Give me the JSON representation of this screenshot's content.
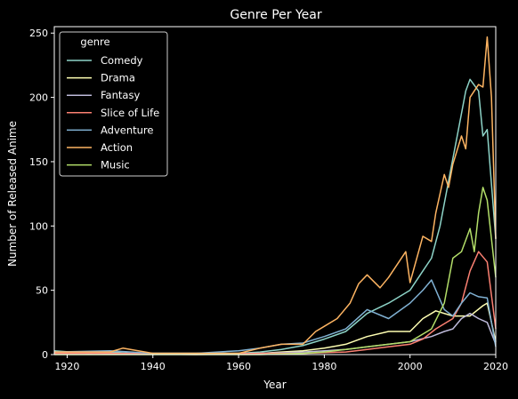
{
  "chart_data": {
    "type": "line",
    "title": "Genre Per Year",
    "xlabel": "Year",
    "ylabel": "Number of Released Anime",
    "xlim": [
      1917,
      2020
    ],
    "ylim": [
      0,
      255
    ],
    "xticks": [
      1920,
      1940,
      1960,
      1980,
      2000,
      2020
    ],
    "yticks": [
      0,
      50,
      100,
      150,
      200,
      250
    ],
    "grid": false,
    "legend": {
      "title": "genre",
      "placement": "top-left"
    },
    "series": [
      {
        "name": "Comedy",
        "color": "#8dd3c7",
        "points": [
          [
            1917,
            3
          ],
          [
            1925,
            1
          ],
          [
            1930,
            2
          ],
          [
            1935,
            1
          ],
          [
            1950,
            1
          ],
          [
            1960,
            1
          ],
          [
            1965,
            2
          ],
          [
            1970,
            4
          ],
          [
            1975,
            7
          ],
          [
            1980,
            12
          ],
          [
            1985,
            18
          ],
          [
            1990,
            32
          ],
          [
            1995,
            40
          ],
          [
            2000,
            50
          ],
          [
            2003,
            65
          ],
          [
            2005,
            75
          ],
          [
            2007,
            100
          ],
          [
            2009,
            135
          ],
          [
            2011,
            170
          ],
          [
            2013,
            205
          ],
          [
            2014,
            214
          ],
          [
            2016,
            205
          ],
          [
            2017,
            170
          ],
          [
            2018,
            175
          ],
          [
            2020,
            90
          ]
        ]
      },
      {
        "name": "Drama",
        "color": "#ffffb3",
        "points": [
          [
            1917,
            2
          ],
          [
            1930,
            1
          ],
          [
            1950,
            1
          ],
          [
            1960,
            1
          ],
          [
            1965,
            1
          ],
          [
            1970,
            2
          ],
          [
            1975,
            3
          ],
          [
            1980,
            5
          ],
          [
            1985,
            8
          ],
          [
            1990,
            14
          ],
          [
            1995,
            18
          ],
          [
            2000,
            18
          ],
          [
            2003,
            28
          ],
          [
            2006,
            34
          ],
          [
            2010,
            30
          ],
          [
            2014,
            30
          ],
          [
            2017,
            38
          ],
          [
            2018,
            40
          ],
          [
            2020,
            10
          ]
        ]
      },
      {
        "name": "Fantasy",
        "color": "#bebada",
        "points": [
          [
            1917,
            2
          ],
          [
            1930,
            1
          ],
          [
            1950,
            1
          ],
          [
            1965,
            1
          ],
          [
            1975,
            2
          ],
          [
            1980,
            3
          ],
          [
            1985,
            4
          ],
          [
            1990,
            6
          ],
          [
            1995,
            8
          ],
          [
            2000,
            10
          ],
          [
            2005,
            14
          ],
          [
            2008,
            18
          ],
          [
            2010,
            20
          ],
          [
            2012,
            28
          ],
          [
            2014,
            32
          ],
          [
            2016,
            28
          ],
          [
            2018,
            25
          ],
          [
            2020,
            8
          ]
        ]
      },
      {
        "name": "Slice of Life",
        "color": "#fb8072",
        "points": [
          [
            1917,
            1
          ],
          [
            1930,
            1
          ],
          [
            1950,
            0
          ],
          [
            1965,
            1
          ],
          [
            1975,
            1
          ],
          [
            1985,
            2
          ],
          [
            1990,
            4
          ],
          [
            1995,
            6
          ],
          [
            2000,
            8
          ],
          [
            2003,
            12
          ],
          [
            2006,
            20
          ],
          [
            2010,
            28
          ],
          [
            2012,
            40
          ],
          [
            2014,
            65
          ],
          [
            2016,
            80
          ],
          [
            2018,
            72
          ],
          [
            2020,
            20
          ]
        ]
      },
      {
        "name": "Adventure",
        "color": "#80b1d3",
        "points": [
          [
            1917,
            2
          ],
          [
            1930,
            3
          ],
          [
            1940,
            1
          ],
          [
            1950,
            1
          ],
          [
            1960,
            3
          ],
          [
            1965,
            5
          ],
          [
            1970,
            8
          ],
          [
            1975,
            9
          ],
          [
            1980,
            14
          ],
          [
            1985,
            20
          ],
          [
            1990,
            35
          ],
          [
            1995,
            28
          ],
          [
            2000,
            40
          ],
          [
            2003,
            50
          ],
          [
            2005,
            58
          ],
          [
            2008,
            35
          ],
          [
            2010,
            30
          ],
          [
            2012,
            40
          ],
          [
            2014,
            48
          ],
          [
            2016,
            45
          ],
          [
            2018,
            44
          ],
          [
            2020,
            6
          ]
        ]
      },
      {
        "name": "Action",
        "color": "#fdb462",
        "points": [
          [
            1917,
            2
          ],
          [
            1930,
            2
          ],
          [
            1933,
            5
          ],
          [
            1940,
            1
          ],
          [
            1950,
            1
          ],
          [
            1960,
            1
          ],
          [
            1965,
            5
          ],
          [
            1970,
            8
          ],
          [
            1975,
            8
          ],
          [
            1978,
            18
          ],
          [
            1980,
            22
          ],
          [
            1983,
            28
          ],
          [
            1986,
            40
          ],
          [
            1988,
            55
          ],
          [
            1990,
            62
          ],
          [
            1993,
            52
          ],
          [
            1995,
            60
          ],
          [
            1999,
            80
          ],
          [
            2000,
            56
          ],
          [
            2003,
            92
          ],
          [
            2005,
            88
          ],
          [
            2006,
            110
          ],
          [
            2007,
            125
          ],
          [
            2008,
            140
          ],
          [
            2009,
            130
          ],
          [
            2010,
            148
          ],
          [
            2012,
            170
          ],
          [
            2013,
            160
          ],
          [
            2014,
            200
          ],
          [
            2016,
            210
          ],
          [
            2017,
            208
          ],
          [
            2018,
            247
          ],
          [
            2019,
            200
          ],
          [
            2020,
            90
          ]
        ]
      },
      {
        "name": "Music",
        "color": "#b3de69",
        "points": [
          [
            1917,
            0
          ],
          [
            1950,
            0
          ],
          [
            1965,
            0
          ],
          [
            1975,
            1
          ],
          [
            1980,
            2
          ],
          [
            1985,
            4
          ],
          [
            1990,
            6
          ],
          [
            1995,
            8
          ],
          [
            2000,
            10
          ],
          [
            2005,
            20
          ],
          [
            2008,
            40
          ],
          [
            2010,
            75
          ],
          [
            2012,
            80
          ],
          [
            2014,
            98
          ],
          [
            2015,
            80
          ],
          [
            2016,
            110
          ],
          [
            2017,
            130
          ],
          [
            2018,
            120
          ],
          [
            2020,
            60
          ]
        ]
      }
    ]
  }
}
